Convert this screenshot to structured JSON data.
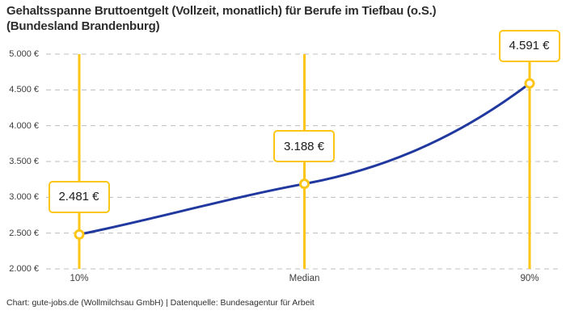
{
  "title": {
    "line1": "Gehaltsspanne Bruttoentgelt (Vollzeit, monatlich) für Berufe im Tiefbau (o.S.)",
    "line2": "(Bundesland Brandenburg)"
  },
  "footer": "Chart: gute-jobs.de (Wollmilchsau GmbH) | Datenquelle: Bundesagentur für Arbeit",
  "chart_data": {
    "type": "line",
    "title": "Gehaltsspanne Bruttoentgelt (Vollzeit, monatlich) für Berufe im Tiefbau (o.S.) (Bundesland Brandenburg)",
    "categories": [
      "10%",
      "Median",
      "90%"
    ],
    "values": [
      2481,
      3188,
      4591
    ],
    "point_labels": [
      "2.481 €",
      "3.188 €",
      "4.591 €"
    ],
    "ylim": [
      2000,
      5000
    ],
    "ytick_step": 500,
    "ytick_labels": [
      "2.000 €",
      "2.500 €",
      "3.000 €",
      "3.500 €",
      "4.000 €",
      "4.500 €",
      "5.000 €"
    ],
    "xlabel": "",
    "ylabel": "",
    "grid": "horizontal-dashed",
    "legend": "none",
    "annotations": "value label box above each data point, vertical marker line at each percentile",
    "colors": {
      "line": "#21399f",
      "accent": "#fdc515",
      "grid": "#bdbdbd",
      "text": "#3c3c3c"
    }
  }
}
